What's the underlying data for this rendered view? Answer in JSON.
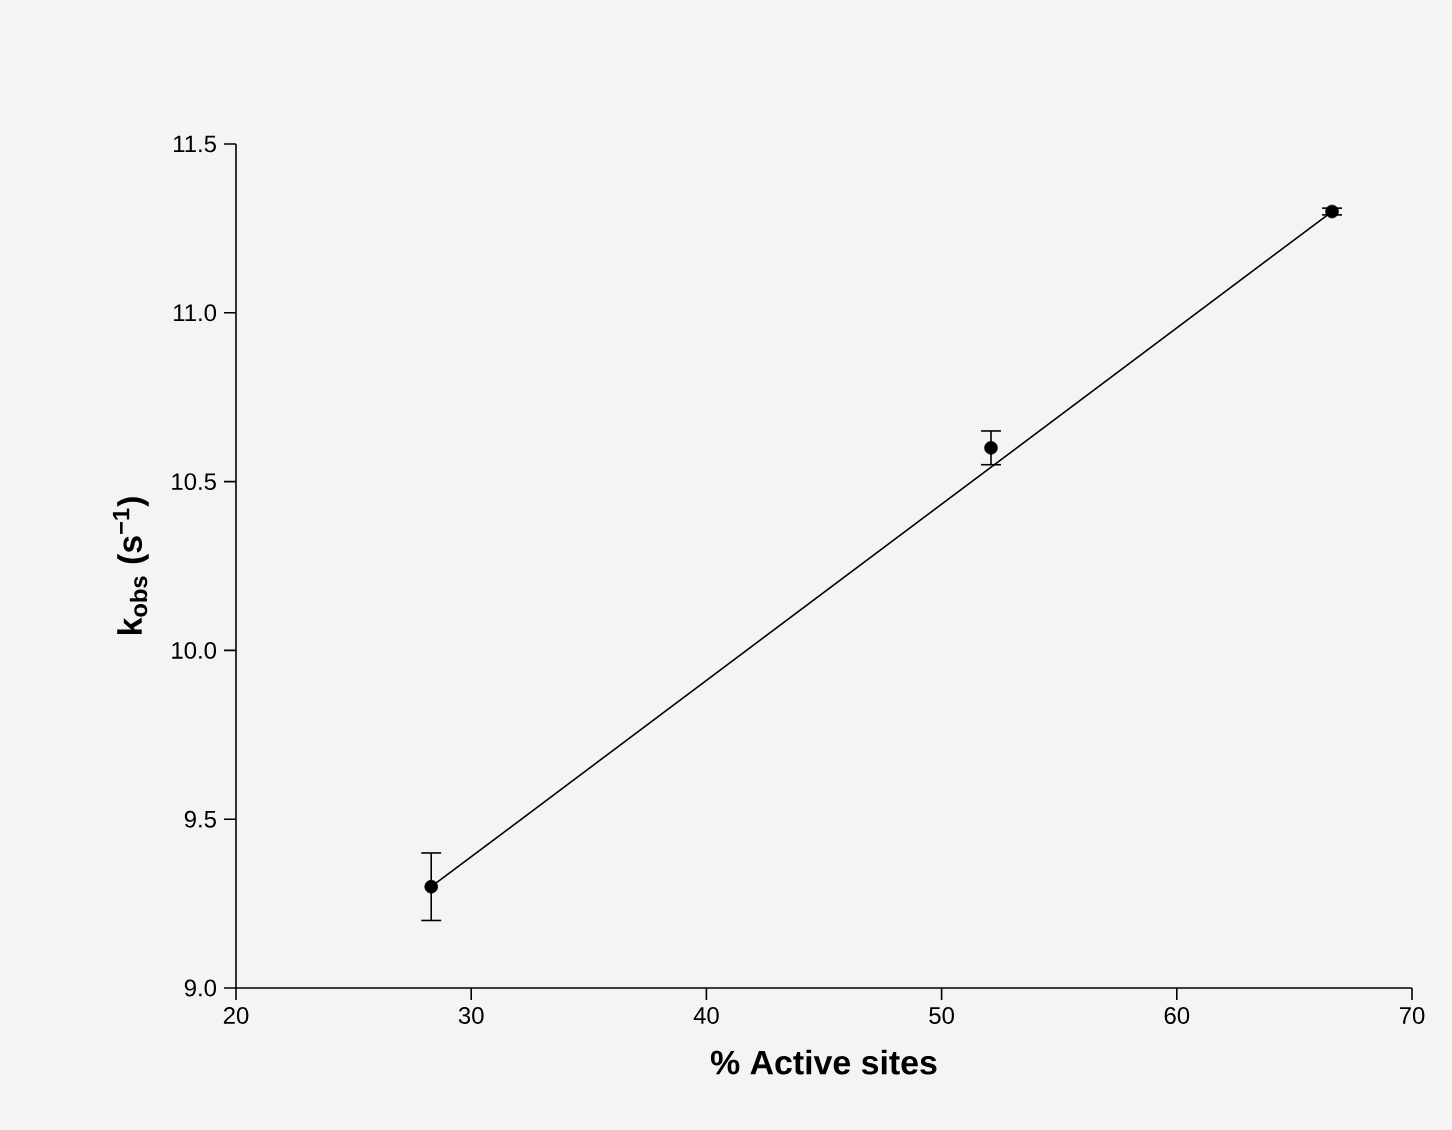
{
  "chart_data": {
    "type": "scatter",
    "xlabel": "% Active sites",
    "ylabel": "k$_{obs}$ (s$^{−1}$)",
    "xlim": [
      20,
      70
    ],
    "xticks": [
      20,
      30,
      40,
      50,
      60,
      70
    ],
    "ylim": [
      9.0,
      11.5
    ],
    "yticks": [
      {
        "value": 9.0,
        "label": "9.0"
      },
      {
        "value": 9.5,
        "label": "9.5"
      },
      {
        "value": 10.0,
        "label": "10.0"
      },
      {
        "value": 10.5,
        "label": "10.5"
      },
      {
        "value": 11.0,
        "label": "11.0"
      },
      {
        "value": 11.5,
        "label": "11.5"
      }
    ],
    "series": [
      {
        "color": "#000000",
        "marker": "circle",
        "x": [
          28.3,
          52.1,
          66.6
        ],
        "values": [
          9.3,
          10.6,
          11.3
        ],
        "errors": [
          0.1,
          0.05,
          0.01
        ]
      },
      {
        "type": "line",
        "color": "#000000",
        "marker": "none",
        "line_style": "solid",
        "x": [
          28.3,
          66.6
        ],
        "values": [
          9.3,
          11.3
        ]
      }
    ]
  }
}
